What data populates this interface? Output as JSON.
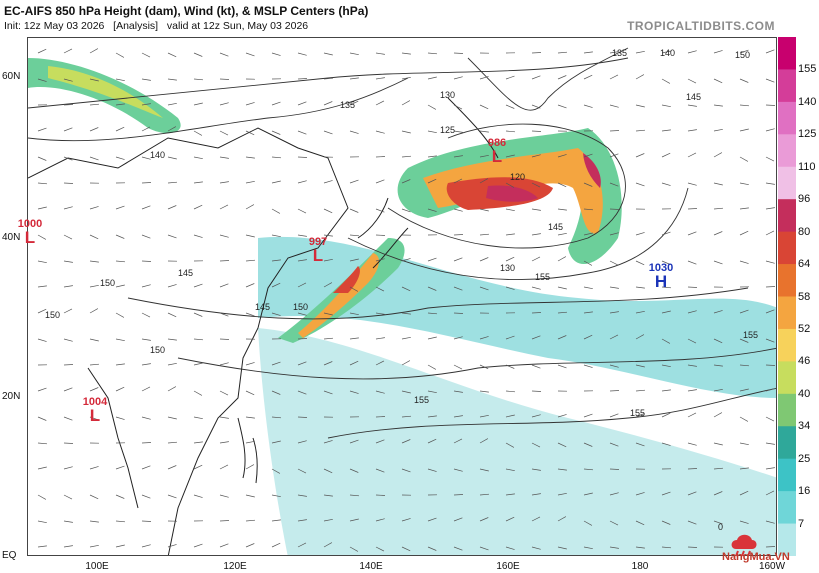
{
  "header": {
    "title": "EC-AIFS 850 hPa Height (dam), Wind (kt), & MSLP Centers (hPa)",
    "init": "Init: 12z May 03 2026",
    "analysis": "[Analysis]",
    "valid": "valid at 12z Sun, May 03 2026",
    "site": "TROPICALTIDBITS.COM"
  },
  "axes": {
    "lat_labels": [
      "60N",
      "40N",
      "20N",
      "EQ"
    ],
    "lon_labels": [
      "100E",
      "120E",
      "140E",
      "160E",
      "180",
      "160W"
    ]
  },
  "colorbar": {
    "labels": [
      "155",
      "140",
      "125",
      "110",
      "96",
      "80",
      "64",
      "58",
      "52",
      "46",
      "40",
      "34",
      "25",
      "16",
      "7"
    ],
    "colors": [
      "#c8006e",
      "#d43d99",
      "#e070c2",
      "#ea9bd7",
      "#f0c0e6",
      "#c42e5c",
      "#d94535",
      "#e8732d",
      "#f4a540",
      "#f7d25b",
      "#c7dd5e",
      "#7fc873",
      "#2fa89a",
      "#3dc3c6",
      "#6fd6d8",
      "#b5e8ea"
    ]
  },
  "height_labels": [
    "140",
    "145",
    "135",
    "130",
    "125",
    "120",
    "130",
    "145",
    "150",
    "150",
    "145",
    "150",
    "155",
    "155",
    "155",
    "150",
    "145",
    "140",
    "135",
    "155",
    "150",
    "0"
  ],
  "pressure_centers": [
    {
      "value": "1000",
      "type": "L"
    },
    {
      "value": "997",
      "type": "L"
    },
    {
      "value": "986",
      "type": "L"
    },
    {
      "value": "1030",
      "type": "H"
    },
    {
      "value": "1004",
      "type": "L"
    }
  ],
  "logo": {
    "text": "NangMua.VN"
  }
}
